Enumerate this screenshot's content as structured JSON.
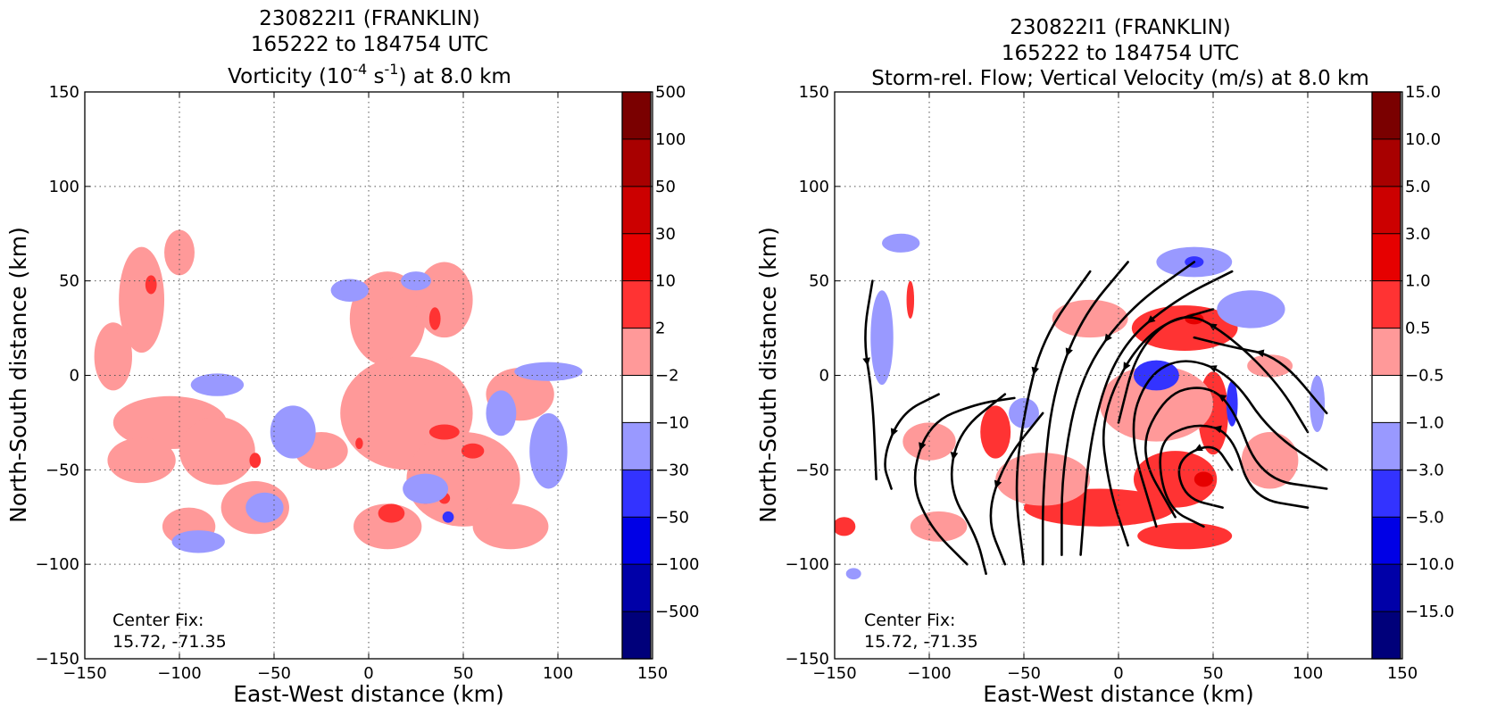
{
  "chart_data": [
    {
      "type": "heatmap",
      "title_lines": [
        "230822I1 (FRANKLIN)",
        "165222 to 184754 UTC"
      ],
      "title_line3": {
        "prefix": "Vorticity (10",
        "sup1": "-4",
        "mid": " s",
        "sup2": "-1",
        "suffix": ") at 8.0 km"
      },
      "xlabel": "East-West distance (km)",
      "ylabel": "North-South distance (km)",
      "xlim": [
        -150,
        150
      ],
      "ylim": [
        -150,
        150
      ],
      "xticks": [
        -150,
        -100,
        -50,
        0,
        50,
        100,
        150
      ],
      "yticks": [
        -150,
        -100,
        -50,
        0,
        50,
        100,
        150
      ],
      "xtick_labels": [
        "−150",
        "−100",
        "−50",
        "0",
        "50",
        "100",
        "150"
      ],
      "ytick_labels": [
        "−150",
        "−100",
        "−50",
        "0",
        "50",
        "100",
        "150"
      ],
      "grid": true,
      "annotation": [
        "Center Fix:",
        "15.72, -71.35"
      ],
      "colorbar": {
        "labels": [
          "500",
          "100",
          "50",
          "30",
          "10",
          "2",
          "−2",
          "−10",
          "−30",
          "−50",
          "−100",
          "−500"
        ],
        "colors": [
          "#7a0000",
          "#a80000",
          "#cc0000",
          "#e60000",
          "#ff3333",
          "#ff9999",
          "#ffffff",
          "#9999ff",
          "#3333ff",
          "#0000e6",
          "#0000a8",
          "#00007a"
        ]
      },
      "blobs": [
        {
          "x": -120,
          "y": 40,
          "rx": 12,
          "ry": 28,
          "level": 1
        },
        {
          "x": -135,
          "y": 10,
          "rx": 10,
          "ry": 18,
          "level": 1
        },
        {
          "x": -100,
          "y": 65,
          "rx": 8,
          "ry": 12,
          "level": 1
        },
        {
          "x": -115,
          "y": 48,
          "rx": 3,
          "ry": 5,
          "level": 2
        },
        {
          "x": -105,
          "y": -25,
          "rx": 30,
          "ry": 14,
          "level": 1
        },
        {
          "x": -120,
          "y": -45,
          "rx": 18,
          "ry": 12,
          "level": 1
        },
        {
          "x": -80,
          "y": -40,
          "rx": 20,
          "ry": 18,
          "level": 1
        },
        {
          "x": -60,
          "y": -70,
          "rx": 18,
          "ry": 14,
          "level": 1
        },
        {
          "x": -95,
          "y": -80,
          "rx": 14,
          "ry": 10,
          "level": 1
        },
        {
          "x": -60,
          "y": -45,
          "rx": 3,
          "ry": 4,
          "level": 2
        },
        {
          "x": -25,
          "y": -40,
          "rx": 14,
          "ry": 10,
          "level": 1
        },
        {
          "x": 10,
          "y": 30,
          "rx": 20,
          "ry": 25,
          "level": 1
        },
        {
          "x": 40,
          "y": 40,
          "rx": 15,
          "ry": 20,
          "level": 1
        },
        {
          "x": 20,
          "y": -20,
          "rx": 35,
          "ry": 30,
          "level": 1
        },
        {
          "x": 50,
          "y": -55,
          "rx": 30,
          "ry": 25,
          "level": 1
        },
        {
          "x": 80,
          "y": -10,
          "rx": 18,
          "ry": 14,
          "level": 1
        },
        {
          "x": 75,
          "y": -80,
          "rx": 20,
          "ry": 12,
          "level": 1
        },
        {
          "x": 10,
          "y": -80,
          "rx": 18,
          "ry": 12,
          "level": 1
        },
        {
          "x": 35,
          "y": 30,
          "rx": 3,
          "ry": 6,
          "level": 2
        },
        {
          "x": 40,
          "y": -30,
          "rx": 8,
          "ry": 4,
          "level": 2
        },
        {
          "x": 55,
          "y": -40,
          "rx": 6,
          "ry": 4,
          "level": 2
        },
        {
          "x": 12,
          "y": -73,
          "rx": 7,
          "ry": 5,
          "level": 2
        },
        {
          "x": 30,
          "y": -65,
          "rx": 3,
          "ry": 3,
          "level": 2
        },
        {
          "x": 40,
          "y": -65,
          "rx": 3,
          "ry": 3,
          "level": 2
        },
        {
          "x": -5,
          "y": -36,
          "rx": 2,
          "ry": 3,
          "level": 2
        },
        {
          "x": -80,
          "y": -5,
          "rx": 14,
          "ry": 6,
          "level": -1
        },
        {
          "x": -40,
          "y": -30,
          "rx": 12,
          "ry": 14,
          "level": -1
        },
        {
          "x": -55,
          "y": -70,
          "rx": 10,
          "ry": 8,
          "level": -1
        },
        {
          "x": -90,
          "y": -88,
          "rx": 14,
          "ry": 6,
          "level": -1
        },
        {
          "x": 95,
          "y": 2,
          "rx": 18,
          "ry": 5,
          "level": -1
        },
        {
          "x": 95,
          "y": -40,
          "rx": 10,
          "ry": 20,
          "level": -1
        },
        {
          "x": 70,
          "y": -20,
          "rx": 8,
          "ry": 12,
          "level": -1
        },
        {
          "x": 25,
          "y": 50,
          "rx": 8,
          "ry": 5,
          "level": -1
        },
        {
          "x": -10,
          "y": 45,
          "rx": 10,
          "ry": 6,
          "level": -1
        },
        {
          "x": 30,
          "y": -60,
          "rx": 12,
          "ry": 8,
          "level": -1
        },
        {
          "x": 42,
          "y": -75,
          "rx": 3,
          "ry": 3,
          "level": -2
        }
      ]
    },
    {
      "type": "heatmap",
      "title_lines": [
        "230822I1 (FRANKLIN)",
        "165222 to 184754 UTC",
        "Storm-rel. Flow; Vertical Velocity (m/s) at 8.0 km"
      ],
      "xlabel": "East-West distance (km)",
      "ylabel": "North-South distance (km)",
      "xlim": [
        -150,
        150
      ],
      "ylim": [
        -150,
        150
      ],
      "xticks": [
        -150,
        -100,
        -50,
        0,
        50,
        100,
        150
      ],
      "yticks": [
        -150,
        -100,
        -50,
        0,
        50,
        100,
        150
      ],
      "xtick_labels": [
        "−150",
        "−100",
        "−50",
        "0",
        "50",
        "100",
        "150"
      ],
      "ytick_labels": [
        "−150",
        "−100",
        "−50",
        "0",
        "50",
        "100",
        "150"
      ],
      "grid": true,
      "annotation": [
        "Center Fix:",
        "15.72, -71.35"
      ],
      "colorbar": {
        "labels": [
          "15.0",
          "10.0",
          "5.0",
          "3.0",
          "1.0",
          "0.5",
          "−0.5",
          "−1.0",
          "−3.0",
          "−5.0",
          "−10.0",
          "−15.0"
        ],
        "colors": [
          "#7a0000",
          "#a80000",
          "#cc0000",
          "#e60000",
          "#ff3333",
          "#ff9999",
          "#ffffff",
          "#9999ff",
          "#3333ff",
          "#0000e6",
          "#0000a8",
          "#00007a"
        ]
      },
      "blobs": [
        {
          "x": 35,
          "y": 25,
          "rx": 28,
          "ry": 12,
          "level": 2
        },
        {
          "x": 50,
          "y": -20,
          "rx": 8,
          "ry": 22,
          "level": 2
        },
        {
          "x": 30,
          "y": -55,
          "rx": 22,
          "ry": 15,
          "level": 2
        },
        {
          "x": -10,
          "y": -70,
          "rx": 40,
          "ry": 10,
          "level": 2
        },
        {
          "x": 35,
          "y": -85,
          "rx": 25,
          "ry": 7,
          "level": 2
        },
        {
          "x": -65,
          "y": -30,
          "rx": 8,
          "ry": 14,
          "level": 2
        },
        {
          "x": -145,
          "y": -80,
          "rx": 6,
          "ry": 5,
          "level": 2
        },
        {
          "x": -15,
          "y": 30,
          "rx": 20,
          "ry": 10,
          "level": 1
        },
        {
          "x": 20,
          "y": -15,
          "rx": 30,
          "ry": 20,
          "level": 1
        },
        {
          "x": -40,
          "y": -55,
          "rx": 25,
          "ry": 14,
          "level": 1
        },
        {
          "x": 80,
          "y": 5,
          "rx": 12,
          "ry": 6,
          "level": 1
        },
        {
          "x": 80,
          "y": -45,
          "rx": 15,
          "ry": 15,
          "level": 1
        },
        {
          "x": -95,
          "y": -80,
          "rx": 15,
          "ry": 8,
          "level": 1
        },
        {
          "x": -100,
          "y": -35,
          "rx": 14,
          "ry": 10,
          "level": 1
        },
        {
          "x": -110,
          "y": 40,
          "rx": 2,
          "ry": 10,
          "level": 2
        },
        {
          "x": 45,
          "y": -55,
          "rx": 5,
          "ry": 4,
          "level": 3
        },
        {
          "x": 40,
          "y": 30,
          "rx": 5,
          "ry": 3,
          "level": 3
        },
        {
          "x": 70,
          "y": 35,
          "rx": 18,
          "ry": 10,
          "level": -1
        },
        {
          "x": 40,
          "y": 60,
          "rx": 20,
          "ry": 8,
          "level": -1
        },
        {
          "x": 20,
          "y": 0,
          "rx": 12,
          "ry": 8,
          "level": -2
        },
        {
          "x": 60,
          "y": -15,
          "rx": 3,
          "ry": 12,
          "level": -2
        },
        {
          "x": -50,
          "y": -20,
          "rx": 8,
          "ry": 8,
          "level": -1
        },
        {
          "x": 105,
          "y": -15,
          "rx": 4,
          "ry": 15,
          "level": -1
        },
        {
          "x": -125,
          "y": 20,
          "rx": 6,
          "ry": 25,
          "level": -1
        },
        {
          "x": -115,
          "y": 70,
          "rx": 10,
          "ry": 5,
          "level": -1
        },
        {
          "x": -140,
          "y": -105,
          "rx": 4,
          "ry": 3,
          "level": -1
        },
        {
          "x": 40,
          "y": 60,
          "rx": 5,
          "ry": 3,
          "level": -2
        }
      ],
      "streamlines": [
        [
          [
            -130,
            50
          ],
          [
            -135,
            20
          ],
          [
            -130,
            -10
          ],
          [
            -128,
            -55
          ]
        ],
        [
          [
            -95,
            -10
          ],
          [
            -115,
            -20
          ],
          [
            -125,
            -45
          ],
          [
            -120,
            -60
          ]
        ],
        [
          [
            -55,
            -12
          ],
          [
            -75,
            -15
          ],
          [
            -100,
            -25
          ],
          [
            -110,
            -55
          ],
          [
            -100,
            -80
          ],
          [
            -80,
            -100
          ]
        ],
        [
          [
            -60,
            -10
          ],
          [
            -85,
            -30
          ],
          [
            -90,
            -60
          ],
          [
            -75,
            -85
          ],
          [
            -70,
            -105
          ]
        ],
        [
          [
            -40,
            -20
          ],
          [
            -60,
            -45
          ],
          [
            -70,
            -75
          ],
          [
            -60,
            -100
          ]
        ],
        [
          [
            -15,
            55
          ],
          [
            -40,
            20
          ],
          [
            -50,
            -20
          ],
          [
            -55,
            -60
          ],
          [
            -50,
            -100
          ]
        ],
        [
          [
            5,
            60
          ],
          [
            -20,
            30
          ],
          [
            -35,
            -10
          ],
          [
            -40,
            -60
          ],
          [
            -40,
            -100
          ]
        ],
        [
          [
            40,
            60
          ],
          [
            5,
            35
          ],
          [
            -20,
            0
          ],
          [
            -30,
            -50
          ],
          [
            -30,
            -95
          ]
        ],
        [
          [
            60,
            55
          ],
          [
            30,
            40
          ],
          [
            0,
            15
          ],
          [
            -15,
            -30
          ],
          [
            -20,
            -95
          ]
        ],
        [
          [
            50,
            35
          ],
          [
            15,
            25
          ],
          [
            -10,
            -20
          ],
          [
            -5,
            -60
          ],
          [
            5,
            -90
          ]
        ],
        [
          [
            100,
            -30
          ],
          [
            85,
            -5
          ],
          [
            60,
            20
          ],
          [
            35,
            35
          ],
          [
            10,
            15
          ],
          [
            0,
            -25
          ]
        ],
        [
          [
            110,
            -50
          ],
          [
            80,
            -30
          ],
          [
            60,
            0
          ],
          [
            35,
            10
          ],
          [
            15,
            0
          ],
          [
            5,
            -30
          ],
          [
            20,
            -80
          ]
        ],
        [
          [
            110,
            -60
          ],
          [
            75,
            -55
          ],
          [
            60,
            -15
          ],
          [
            45,
            -5
          ],
          [
            25,
            -10
          ],
          [
            10,
            -40
          ],
          [
            30,
            -75
          ]
        ],
        [
          [
            100,
            -70
          ],
          [
            70,
            -65
          ],
          [
            60,
            -30
          ],
          [
            40,
            -25
          ],
          [
            20,
            -35
          ],
          [
            25,
            -70
          ],
          [
            45,
            -80
          ]
        ],
        [
          [
            60,
            -50
          ],
          [
            50,
            -35
          ],
          [
            30,
            -45
          ],
          [
            35,
            -65
          ],
          [
            55,
            -70
          ]
        ],
        [
          [
            110,
            -20
          ],
          [
            85,
            10
          ],
          [
            60,
            15
          ],
          [
            40,
            20
          ]
        ]
      ]
    }
  ]
}
